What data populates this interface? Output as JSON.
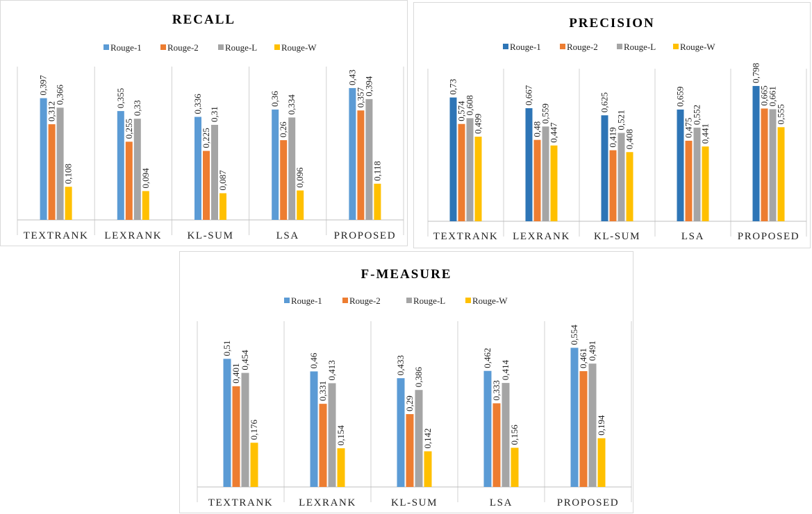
{
  "chart_data": [
    {
      "id": "recall",
      "type": "bar",
      "title": "RECALL",
      "categories": [
        "TEXTRANK",
        "LEXRANK",
        "KL-SUM",
        "LSA",
        "PROPOSED"
      ],
      "series": [
        {
          "name": "Rouge-1",
          "color": "#5b9bd5",
          "values": [
            0.397,
            0.355,
            0.336,
            0.36,
            0.43
          ],
          "labels": [
            "0,397",
            "0,355",
            "0,336",
            "0,36",
            "0,43"
          ]
        },
        {
          "name": "Rouge-2",
          "color": "#ed7d31",
          "values": [
            0.312,
            0.255,
            0.225,
            0.26,
            0.357
          ],
          "labels": [
            "0,312",
            "0,255",
            "0,225",
            "0,26",
            "0,357"
          ]
        },
        {
          "name": "Rouge-L",
          "color": "#a5a5a5",
          "values": [
            0.366,
            0.33,
            0.31,
            0.334,
            0.394
          ],
          "labels": [
            "0,366",
            "0,33",
            "0,31",
            "0,334",
            "0,394"
          ]
        },
        {
          "name": "Rouge-W",
          "color": "#ffc000",
          "values": [
            0.108,
            0.094,
            0.087,
            0.096,
            0.118
          ],
          "labels": [
            "0,108",
            "0,094",
            "0,087",
            "0,096",
            "0,118"
          ]
        }
      ],
      "ylim": [
        0,
        0.5
      ],
      "legend": "top",
      "grid": false
    },
    {
      "id": "precision",
      "type": "bar",
      "title": "PRECISION",
      "categories": [
        "TEXTRANK",
        "LEXRANK",
        "KL-SUM",
        "LSA",
        "PROPOSED"
      ],
      "series": [
        {
          "name": "Rouge-1",
          "color": "#2e75b6",
          "values": [
            0.73,
            0.667,
            0.625,
            0.659,
            0.798
          ],
          "labels": [
            "0,73",
            "0,667",
            "0,625",
            "0,659",
            "0,798"
          ]
        },
        {
          "name": "Rouge-2",
          "color": "#ed7d31",
          "values": [
            0.574,
            0.48,
            0.419,
            0.475,
            0.665
          ],
          "labels": [
            "0,574",
            "0,48",
            "0,419",
            "0,475",
            "0,665"
          ]
        },
        {
          "name": "Rouge-L",
          "color": "#a5a5a5",
          "values": [
            0.608,
            0.559,
            0.521,
            0.552,
            0.661
          ],
          "labels": [
            "0,608",
            "0,559",
            "0,521",
            "0,552",
            "0,661"
          ]
        },
        {
          "name": "Rouge-W",
          "color": "#ffc000",
          "values": [
            0.499,
            0.447,
            0.408,
            0.441,
            0.555
          ],
          "labels": [
            "0,499",
            "0,447",
            "0,408",
            "0,441",
            "0,555"
          ]
        }
      ],
      "ylim": [
        0,
        0.9
      ],
      "legend": "top",
      "grid": false
    },
    {
      "id": "fmeasure",
      "type": "bar",
      "title": "F-MEASURE",
      "categories": [
        "TEXTRANK",
        "LEXRANK",
        "KL-SUM",
        "LSA",
        "PROPOSED"
      ],
      "series": [
        {
          "name": "Rouge-1",
          "color": "#5b9bd5",
          "values": [
            0.51,
            0.46,
            0.433,
            0.462,
            0.554
          ],
          "labels": [
            "0,51",
            "0,46",
            "0,433",
            "0,462",
            "0,554"
          ]
        },
        {
          "name": "Rouge-2",
          "color": "#ed7d31",
          "values": [
            0.401,
            0.331,
            0.29,
            0.333,
            0.461
          ],
          "labels": [
            "0,401",
            "0,331",
            "0,29",
            "0,333",
            "0,461"
          ]
        },
        {
          "name": "Rouge-L",
          "color": "#a5a5a5",
          "values": [
            0.454,
            0.413,
            0.386,
            0.414,
            0.491
          ],
          "labels": [
            "0,454",
            "0,413",
            "0,386",
            "0,414",
            "0,491"
          ]
        },
        {
          "name": "Rouge-W",
          "color": "#ffc000",
          "values": [
            0.176,
            0.154,
            0.142,
            0.156,
            0.194
          ],
          "labels": [
            "0,176",
            "0,154",
            "0,142",
            "0,156",
            "0,194"
          ]
        }
      ],
      "ylim": [
        0,
        0.66
      ],
      "legend": "top",
      "grid": false
    }
  ]
}
